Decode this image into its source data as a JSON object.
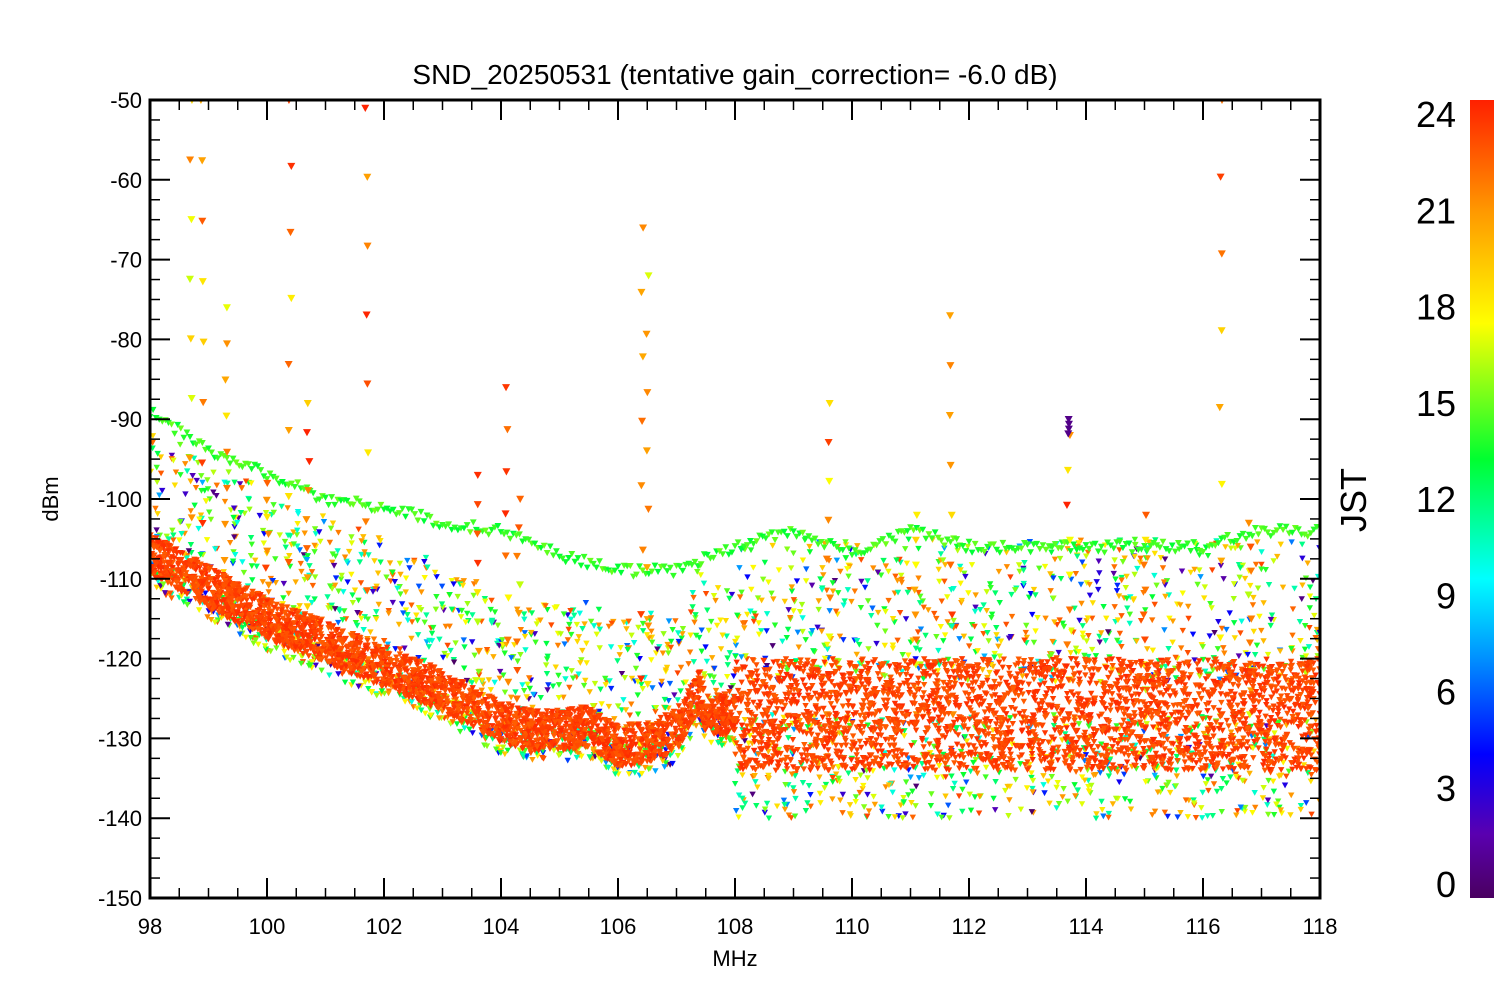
{
  "chart_data": {
    "type": "scatter",
    "title": "SND_20250531 (tentative gain_correction= -6.0 dB)",
    "xlabel": "MHz",
    "ylabel": "dBm",
    "xlim": [
      98,
      118
    ],
    "ylim": [
      -150,
      -50
    ],
    "x_ticks": [
      "98",
      "100",
      "102",
      "104",
      "106",
      "108",
      "110",
      "112",
      "114",
      "116",
      "118"
    ],
    "y_ticks": [
      "-50",
      "-60",
      "-70",
      "-80",
      "-90",
      "-100",
      "-110",
      "-120",
      "-130",
      "-140",
      "-150"
    ],
    "colorbar": {
      "label": "JST",
      "range": [
        0,
        24
      ],
      "ticks": [
        "24",
        "21",
        "18",
        "15",
        "12",
        "9",
        "6",
        "3",
        "0"
      ]
    },
    "marker": "triangle-down",
    "series": [
      {
        "jst": 23,
        "noise_floor": [
          [
            98.0,
            -107
          ],
          [
            99.0,
            -111
          ],
          [
            100.0,
            -115
          ],
          [
            101.0,
            -118
          ],
          [
            102.0,
            -121
          ],
          [
            103.0,
            -124
          ],
          [
            103.5,
            -126
          ],
          [
            104.0,
            -128
          ],
          [
            104.5,
            -129
          ],
          [
            105.0,
            -129
          ],
          [
            105.5,
            -128.5
          ],
          [
            106.0,
            -131
          ],
          [
            106.5,
            -130.5
          ],
          [
            107.0,
            -129
          ],
          [
            107.4,
            -124
          ],
          [
            107.5,
            -127
          ],
          [
            107.9,
            -127
          ],
          [
            108.0,
            -127
          ],
          [
            118.0,
            -127
          ]
        ],
        "spikes": [
          [
            98.7,
            -50
          ],
          [
            98.9,
            -50
          ],
          [
            99.3,
            -76
          ],
          [
            100.0,
            -98
          ],
          [
            100.4,
            -50
          ],
          [
            100.7,
            -88
          ],
          [
            101.7,
            -51
          ],
          [
            103.6,
            -97
          ],
          [
            104.1,
            -86
          ],
          [
            104.3,
            -100
          ],
          [
            106.4,
            -66
          ],
          [
            106.5,
            -72
          ],
          [
            109.6,
            -88
          ],
          [
            111.1,
            -102
          ],
          [
            111.7,
            -77
          ],
          [
            113.7,
            -92
          ],
          [
            115.0,
            -102
          ],
          [
            116.3,
            -50
          ],
          [
            116.8,
            -103
          ]
        ]
      },
      {
        "jst": 14,
        "line": [
          [
            98.0,
            -89
          ],
          [
            99.0,
            -94
          ],
          [
            100.0,
            -97
          ],
          [
            101.0,
            -100
          ],
          [
            102.0,
            -101
          ],
          [
            103.0,
            -103
          ],
          [
            104.0,
            -104
          ],
          [
            105.0,
            -107
          ],
          [
            106.0,
            -109
          ],
          [
            107.0,
            -109
          ],
          [
            108.0,
            -106
          ],
          [
            109.0,
            -104
          ],
          [
            110.0,
            -107
          ],
          [
            111.0,
            -104
          ],
          [
            112.0,
            -106
          ],
          [
            113.0,
            -106
          ],
          [
            114.0,
            -106
          ],
          [
            115.0,
            -106
          ],
          [
            116.0,
            -106
          ],
          [
            117.0,
            -104
          ],
          [
            118.0,
            -104
          ]
        ]
      },
      {
        "jst": 1,
        "spikes": [
          [
            113.7,
            -90
          ]
        ]
      }
    ]
  }
}
